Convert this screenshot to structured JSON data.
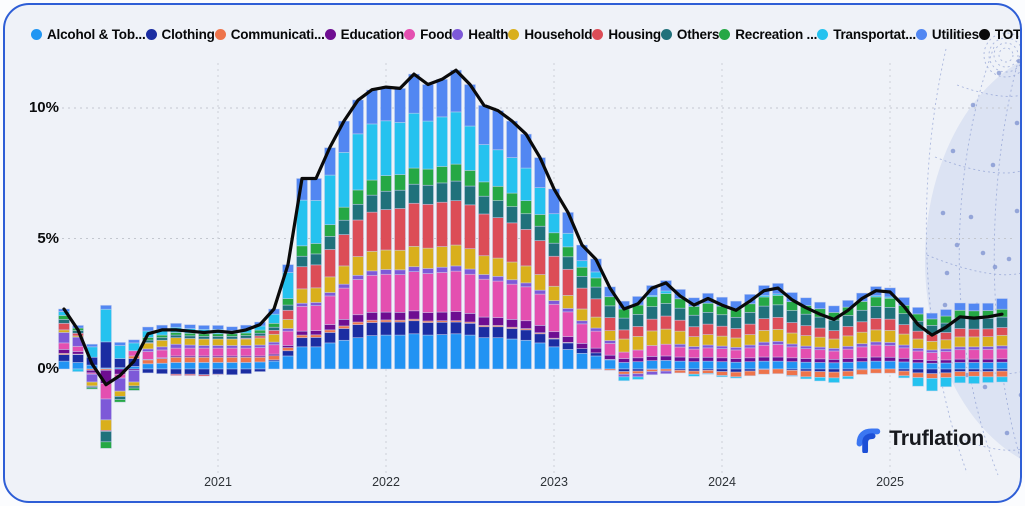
{
  "legend": {
    "items": [
      {
        "label": "Alcohol & Tob...",
        "color": "#2196F3"
      },
      {
        "label": "Clothing",
        "color": "#1B2DA2"
      },
      {
        "label": "Communicati...",
        "color": "#EE744B"
      },
      {
        "label": "Education",
        "color": "#6E0D91"
      },
      {
        "label": "Food",
        "color": "#E44FB0"
      },
      {
        "label": "Health",
        "color": "#7D59D8"
      },
      {
        "label": "Household",
        "color": "#D9AF1C"
      },
      {
        "label": "Housing",
        "color": "#DC4D57"
      },
      {
        "label": "Others",
        "color": "#20717B"
      },
      {
        "label": "Recreation ...",
        "color": "#25A845"
      },
      {
        "label": "Transportat...",
        "color": "#25C2EF"
      },
      {
        "label": "Utilities",
        "color": "#5287F2"
      },
      {
        "label": "TOTAL",
        "color": "#0A0A0A"
      }
    ]
  },
  "y_axis": {
    "ticks": [
      {
        "label": "10%",
        "value": 10
      },
      {
        "label": "5%",
        "value": 5
      },
      {
        "label": "0%",
        "value": 0
      }
    ]
  },
  "x_axis": {
    "ticks": [
      {
        "label": "2021",
        "month_index": 11
      },
      {
        "label": "2022",
        "month_index": 23
      },
      {
        "label": "2023",
        "month_index": 35
      },
      {
        "label": "2024",
        "month_index": 47
      },
      {
        "label": "2025",
        "month_index": 59
      }
    ]
  },
  "branding": {
    "logo_text": "Truflation"
  },
  "chart_data": {
    "type": "stacked-bar-line",
    "unit": "% contribution to year-over-year inflation",
    "ylim": [
      -3.5,
      12
    ],
    "grid": "dotted",
    "legend_position": "top",
    "months": [
      "2020-02",
      "2020-03",
      "2020-04",
      "2020-05",
      "2020-06",
      "2020-07",
      "2020-08",
      "2020-09",
      "2020-10",
      "2020-11",
      "2020-12",
      "2021-01",
      "2021-02",
      "2021-03",
      "2021-04",
      "2021-05",
      "2021-06",
      "2021-07",
      "2021-08",
      "2021-09",
      "2021-10",
      "2021-11",
      "2021-12",
      "2022-01",
      "2022-02",
      "2022-03",
      "2022-04",
      "2022-05",
      "2022-06",
      "2022-07",
      "2022-08",
      "2022-09",
      "2022-10",
      "2022-11",
      "2022-12",
      "2023-01",
      "2023-02",
      "2023-03",
      "2023-04",
      "2023-05",
      "2023-06",
      "2023-07",
      "2023-08",
      "2023-09",
      "2023-10",
      "2023-11",
      "2023-12",
      "2024-01",
      "2024-02",
      "2024-03",
      "2024-04",
      "2024-05",
      "2024-06",
      "2024-07",
      "2024-08",
      "2024-09",
      "2024-10",
      "2024-11",
      "2024-12",
      "2025-01",
      "2025-02",
      "2025-03",
      "2025-04",
      "2025-05",
      "2025-06",
      "2025-07",
      "2025-08",
      "2025-09"
    ],
    "series": [
      {
        "name": "Alcohol & Tobacco",
        "color": "#2193F3",
        "values": [
          0.3,
          0.25,
          0.15,
          0.04,
          0.05,
          0.1,
          0.2,
          0.22,
          0.25,
          0.25,
          0.25,
          0.25,
          0.25,
          0.25,
          0.27,
          0.3,
          0.5,
          0.85,
          0.85,
          1.0,
          1.1,
          1.2,
          1.28,
          1.3,
          1.3,
          1.35,
          1.3,
          1.32,
          1.35,
          1.3,
          1.2,
          1.2,
          1.15,
          1.1,
          1.0,
          0.85,
          0.75,
          0.6,
          0.5,
          0.35,
          0.25,
          0.28,
          0.32,
          0.33,
          0.3,
          0.28,
          0.3,
          0.28,
          0.26,
          0.28,
          0.3,
          0.3,
          0.28,
          0.26,
          0.25,
          0.24,
          0.26,
          0.28,
          0.3,
          0.3,
          0.27,
          0.24,
          0.22,
          0.23,
          0.25,
          0.25,
          0.25,
          0.26
        ]
      },
      {
        "name": "Clothing",
        "color": "#1B2DA2",
        "values": [
          0.25,
          0.3,
          0.3,
          1.0,
          0.35,
          0.3,
          -0.15,
          -0.18,
          -0.2,
          -0.2,
          -0.22,
          -0.2,
          -0.22,
          -0.18,
          -0.1,
          0.05,
          0.2,
          0.35,
          0.36,
          0.4,
          0.45,
          0.5,
          0.5,
          0.5,
          0.5,
          0.5,
          0.48,
          0.47,
          0.45,
          0.45,
          0.42,
          0.42,
          0.4,
          0.4,
          0.35,
          0.3,
          0.25,
          0.18,
          0.12,
          0.02,
          -0.1,
          -0.08,
          -0.02,
          0,
          -0.05,
          -0.08,
          -0.05,
          -0.1,
          -0.12,
          -0.08,
          -0.02,
          0,
          -0.05,
          -0.08,
          -0.1,
          -0.12,
          -0.08,
          -0.03,
          0,
          0,
          -0.08,
          -0.15,
          -0.18,
          -0.15,
          -0.1,
          -0.1,
          -0.1,
          -0.08
        ]
      },
      {
        "name": "Communication",
        "color": "#EE744B",
        "values": [
          0.05,
          0.02,
          -0.05,
          -0.05,
          0,
          0.1,
          0.15,
          0.18,
          0.2,
          0.2,
          0.2,
          0.2,
          0.2,
          0.2,
          0.18,
          0.16,
          0.12,
          0.1,
          0.1,
          0.1,
          0.1,
          0.1,
          0.09,
          0.08,
          0.07,
          0.06,
          0.06,
          0.06,
          0.05,
          0.05,
          0.05,
          0.05,
          0.05,
          0.05,
          0.04,
          0.03,
          0.02,
          0,
          -0.02,
          -0.05,
          -0.1,
          -0.1,
          -0.08,
          -0.08,
          -0.1,
          -0.12,
          -0.12,
          -0.15,
          -0.18,
          -0.18,
          -0.18,
          -0.18,
          -0.2,
          -0.22,
          -0.22,
          -0.22,
          -0.2,
          -0.18,
          -0.16,
          -0.16,
          -0.18,
          -0.18,
          -0.18,
          -0.18,
          -0.18,
          -0.18,
          -0.2,
          -0.22
        ]
      },
      {
        "name": "Education",
        "color": "#6E0D91",
        "values": [
          0.15,
          0.1,
          -0.1,
          -0.5,
          -0.2,
          -0.05,
          0.02,
          0.03,
          0.05,
          0.05,
          0.05,
          0.05,
          0.05,
          0.05,
          0.05,
          0.06,
          0.08,
          0.15,
          0.16,
          0.2,
          0.25,
          0.28,
          0.3,
          0.3,
          0.3,
          0.32,
          0.32,
          0.33,
          0.35,
          0.33,
          0.32,
          0.3,
          0.3,
          0.3,
          0.28,
          0.25,
          0.22,
          0.2,
          0.18,
          0.16,
          0.15,
          0.15,
          0.16,
          0.17,
          0.16,
          0.15,
          0.15,
          0.15,
          0.14,
          0.15,
          0.16,
          0.16,
          0.15,
          0.14,
          0.14,
          0.13,
          0.14,
          0.15,
          0.16,
          0.15,
          0.14,
          0.12,
          0.11,
          0.12,
          0.13,
          0.13,
          0.13,
          0.13
        ]
      },
      {
        "name": "Food",
        "color": "#E44FB0",
        "values": [
          0.25,
          0.2,
          -0.05,
          -0.6,
          -0.15,
          0.2,
          0.3,
          0.3,
          0.3,
          0.3,
          0.3,
          0.3,
          0.3,
          0.3,
          0.32,
          0.36,
          0.55,
          0.95,
          0.96,
          1.1,
          1.2,
          1.35,
          1.42,
          1.45,
          1.45,
          1.5,
          1.5,
          1.52,
          1.55,
          1.5,
          1.45,
          1.4,
          1.35,
          1.3,
          1.2,
          1.05,
          0.95,
          0.75,
          0.65,
          0.45,
          0.25,
          0.3,
          0.42,
          0.45,
          0.38,
          0.33,
          0.36,
          0.35,
          0.33,
          0.38,
          0.45,
          0.48,
          0.42,
          0.38,
          0.35,
          0.32,
          0.36,
          0.42,
          0.46,
          0.45,
          0.4,
          0.33,
          0.3,
          0.32,
          0.36,
          0.36,
          0.37,
          0.38
        ]
      },
      {
        "name": "Health",
        "color": "#7D59D8",
        "values": [
          0.4,
          0.35,
          -0.3,
          -0.8,
          -0.5,
          -0.45,
          0.1,
          0.12,
          0.15,
          0.12,
          0.1,
          0.1,
          0.1,
          0.1,
          0.1,
          0.1,
          0.1,
          0.12,
          0.12,
          0.13,
          0.15,
          0.16,
          0.17,
          0.18,
          0.18,
          0.19,
          0.19,
          0.2,
          0.2,
          0.2,
          0.18,
          0.18,
          0.17,
          0.15,
          0.15,
          0.14,
          0.13,
          0.12,
          0.12,
          0.11,
          -0.1,
          -0.12,
          -0.12,
          -0.1,
          0.11,
          0.1,
          0.11,
          0.1,
          0.1,
          0.11,
          0.12,
          0.12,
          0.11,
          0.1,
          0.1,
          0.1,
          0.11,
          0.12,
          0.12,
          0.12,
          0.11,
          0.1,
          0.1,
          0.1,
          0.11,
          0.11,
          0.11,
          0.12
        ]
      },
      {
        "name": "Household",
        "color": "#D9AF1C",
        "values": [
          0.1,
          0.05,
          -0.15,
          -0.4,
          -0.2,
          -0.15,
          0.22,
          0.25,
          0.25,
          0.25,
          0.25,
          0.25,
          0.25,
          0.25,
          0.27,
          0.3,
          0.35,
          0.55,
          0.56,
          0.6,
          0.7,
          0.72,
          0.75,
          0.75,
          0.75,
          0.78,
          0.78,
          0.79,
          0.8,
          0.78,
          0.72,
          0.7,
          0.68,
          0.65,
          0.6,
          0.55,
          0.5,
          0.45,
          0.42,
          0.38,
          0.5,
          0.52,
          0.56,
          0.58,
          0.5,
          0.38,
          0.4,
          0.38,
          0.36,
          0.4,
          0.45,
          0.46,
          0.42,
          0.4,
          0.38,
          0.36,
          0.4,
          0.44,
          0.46,
          0.46,
          0.42,
          0.36,
          0.33,
          0.35,
          0.38,
          0.38,
          0.38,
          0.4
        ]
      },
      {
        "name": "Housing",
        "color": "#DC4D57",
        "values": [
          0.25,
          0.1,
          -0.02,
          -0.04,
          0,
          0,
          0.02,
          0,
          -0.05,
          -0.05,
          -0.05,
          -0.02,
          0,
          0.03,
          0.08,
          0.15,
          0.35,
          0.85,
          0.88,
          1.05,
          1.2,
          1.4,
          1.5,
          1.55,
          1.6,
          1.65,
          1.68,
          1.7,
          1.7,
          1.68,
          1.6,
          1.55,
          1.5,
          1.4,
          1.3,
          1.15,
          1.0,
          0.8,
          0.7,
          0.5,
          0.35,
          0.38,
          0.45,
          0.5,
          0.42,
          0.38,
          0.4,
          0.38,
          0.36,
          0.4,
          0.45,
          0.46,
          0.4,
          0.38,
          0.35,
          0.32,
          0.36,
          0.4,
          0.44,
          0.43,
          0.36,
          0.3,
          0.26,
          0.28,
          0.32,
          0.3,
          0.3,
          0.3
        ]
      },
      {
        "name": "Others",
        "color": "#20717B",
        "values": [
          0.15,
          0.1,
          -0.05,
          -0.4,
          -0.12,
          -0.08,
          0.1,
          0.1,
          0.1,
          0.1,
          0.1,
          0.1,
          0.1,
          0.1,
          0.1,
          0.12,
          0.2,
          0.4,
          0.42,
          0.5,
          0.55,
          0.6,
          0.65,
          0.7,
          0.7,
          0.73,
          0.73,
          0.74,
          0.75,
          0.72,
          0.68,
          0.65,
          0.62,
          0.6,
          0.55,
          0.5,
          0.48,
          0.45,
          0.45,
          0.45,
          0.45,
          0.46,
          0.48,
          0.48,
          0.46,
          0.44,
          0.45,
          0.44,
          0.43,
          0.45,
          0.48,
          0.48,
          0.46,
          0.44,
          0.42,
          0.4,
          0.42,
          0.44,
          0.46,
          0.45,
          0.42,
          0.38,
          0.35,
          0.36,
          0.4,
          0.4,
          0.4,
          0.4
        ]
      },
      {
        "name": "Recreation",
        "color": "#25A845",
        "values": [
          0.15,
          0.1,
          -0.05,
          -0.25,
          -0.1,
          -0.09,
          0.1,
          0.1,
          0.1,
          0.1,
          0.1,
          0.1,
          0.1,
          0.1,
          0.12,
          0.15,
          0.25,
          0.4,
          0.4,
          0.45,
          0.5,
          0.55,
          0.58,
          0.6,
          0.6,
          0.62,
          0.62,
          0.63,
          0.65,
          0.6,
          0.55,
          0.55,
          0.52,
          0.5,
          0.45,
          0.4,
          0.38,
          0.35,
          0.35,
          0.35,
          0.35,
          0.36,
          0.38,
          0.38,
          0.36,
          0.34,
          0.35,
          0.33,
          0.32,
          0.33,
          0.35,
          0.36,
          0.34,
          0.33,
          0.32,
          0.3,
          0.32,
          0.34,
          0.36,
          0.35,
          0.32,
          0.28,
          0.25,
          0.27,
          0.3,
          0.3,
          0.3,
          0.3
        ]
      },
      {
        "name": "Transportation",
        "color": "#25C2EF",
        "values": [
          0.15,
          -0.1,
          0.4,
          1.25,
          0.5,
          0.3,
          0.25,
          0.22,
          0.2,
          0.18,
          0.17,
          0.17,
          0.12,
          0.15,
          0.16,
          0.35,
          1.0,
          1.75,
          1.65,
          1.9,
          2.1,
          2.15,
          2.15,
          2.1,
          2.0,
          2.1,
          1.84,
          1.9,
          2.0,
          1.7,
          1.43,
          1.4,
          1.36,
          1.25,
          1.03,
          0.73,
          0.52,
          0.25,
          0.23,
          0,
          -0.15,
          -0.1,
          0.05,
          0.1,
          0,
          -0.08,
          -0.03,
          -0.05,
          -0.05,
          0,
          0.06,
          0.06,
          -0.03,
          -0.08,
          -0.14,
          -0.18,
          -0.1,
          0,
          0.05,
          0.05,
          -0.08,
          -0.33,
          -0.48,
          -0.35,
          -0.25,
          -0.28,
          -0.22,
          -0.2
        ]
      },
      {
        "name": "Utilities",
        "color": "#5287F2",
        "values": [
          0.1,
          0.1,
          0.1,
          0.15,
          0.12,
          0.12,
          0.15,
          0.16,
          0.15,
          0.15,
          0.15,
          0.15,
          0.15,
          0.15,
          0.15,
          0.2,
          0.3,
          0.83,
          0.84,
          1.05,
          1.2,
          1.3,
          1.3,
          1.3,
          1.3,
          1.5,
          1.4,
          1.44,
          1.6,
          1.59,
          1.5,
          1.5,
          1.4,
          1.3,
          1.15,
          0.95,
          0.8,
          0.6,
          0.5,
          0.38,
          0.3,
          0.33,
          0.38,
          0.4,
          0.36,
          0.33,
          0.38,
          0.34,
          0.3,
          0.36,
          0.38,
          0.4,
          0.35,
          0.3,
          0.25,
          0.25,
          0.26,
          0.32,
          0.35,
          0.35,
          0.3,
          0.25,
          0.22,
          0.25,
          0.28,
          0.28,
          0.28,
          0.41
        ]
      }
    ],
    "total": {
      "name": "TOTAL",
      "color": "#0A0A0A",
      "values": [
        2.3,
        1.5,
        0.2,
        -0.6,
        -0.25,
        0.3,
        1.35,
        1.5,
        1.5,
        1.45,
        1.4,
        1.45,
        1.4,
        1.5,
        1.7,
        2.3,
        4.0,
        7.3,
        7.3,
        8.5,
        9.5,
        10.3,
        10.7,
        10.8,
        10.75,
        11.3,
        10.9,
        11.1,
        11.45,
        10.9,
        10.1,
        9.9,
        9.5,
        9.0,
        8.1,
        6.9,
        6.0,
        4.75,
        4.2,
        3.1,
        2.3,
        2.5,
        3.1,
        3.3,
        2.8,
        2.45,
        2.7,
        2.45,
        2.25,
        2.6,
        3.0,
        3.1,
        2.65,
        2.35,
        2.1,
        1.9,
        2.25,
        2.7,
        3.0,
        2.95,
        2.4,
        1.7,
        1.3,
        1.6,
        2.0,
        1.95,
        2.0,
        2.1
      ]
    }
  }
}
